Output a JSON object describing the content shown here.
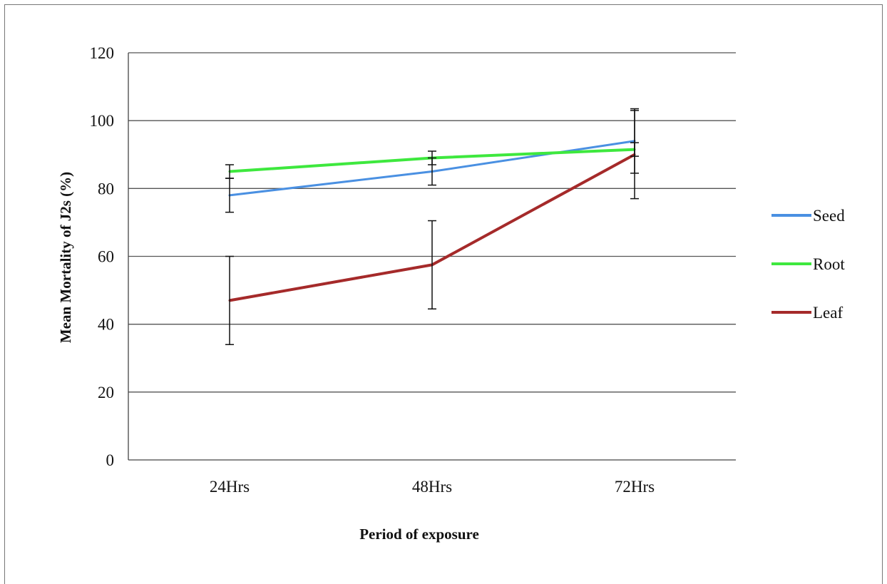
{
  "chart_data": {
    "type": "line",
    "title": "",
    "xlabel": "Period of exposure",
    "ylabel": "Mean Mortality of J2s (%)",
    "categories": [
      "24Hrs",
      "48Hrs",
      "72Hrs"
    ],
    "ylim": [
      0,
      120
    ],
    "yticks": [
      0,
      20,
      40,
      60,
      80,
      100,
      120
    ],
    "grid": true,
    "legend_position": "right",
    "series": [
      {
        "name": "Seed",
        "color": "#4a90e2",
        "values": [
          78,
          85,
          94
        ],
        "error": [
          5,
          4,
          9.5
        ]
      },
      {
        "name": "Root",
        "color": "#3ee83e",
        "values": [
          85,
          89,
          91.5
        ],
        "error": [
          2,
          2,
          2
        ]
      },
      {
        "name": "Leaf",
        "color": "#a52a2a",
        "values": [
          47,
          57.5,
          90
        ],
        "error": [
          13,
          13,
          13
        ]
      }
    ]
  }
}
